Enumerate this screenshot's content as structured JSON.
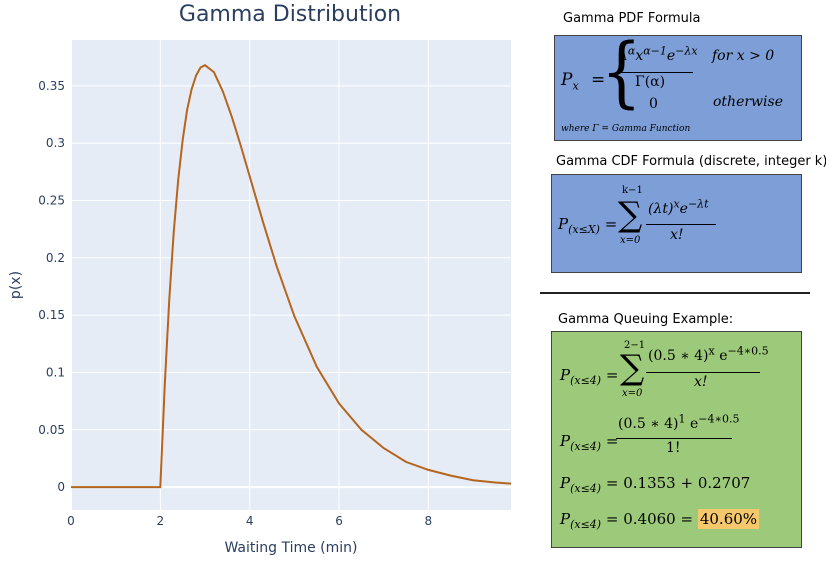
{
  "chart_data": {
    "type": "line",
    "title": "Gamma Distribution",
    "xlabel": "Waiting Time (min)",
    "ylabel": "p(x)",
    "xlim": [
      0,
      9.85
    ],
    "ylim": [
      -0.02,
      0.39
    ],
    "xticks": [
      0,
      2,
      4,
      6,
      8
    ],
    "yticks": [
      0,
      0.05,
      0.1,
      0.15,
      0.2,
      0.25,
      0.3,
      0.35
    ],
    "ytick_labels": [
      "0",
      "0.05",
      "0.1",
      "0.15",
      "0.2",
      "0.25",
      "0.3",
      "0.35"
    ],
    "grid": true,
    "series": [
      {
        "color": "#b5651d",
        "x": [
          0,
          1,
          2,
          2.1,
          2.2,
          2.3,
          2.4,
          2.5,
          2.6,
          2.7,
          2.8,
          2.9,
          3.0,
          3.2,
          3.4,
          3.6,
          3.8,
          4.0,
          4.3,
          4.6,
          5.0,
          5.5,
          6.0,
          6.5,
          7.0,
          7.5,
          8.0,
          8.5,
          9.0,
          9.5,
          9.85
        ],
        "y": [
          0,
          0,
          0,
          0.09,
          0.164,
          0.222,
          0.268,
          0.303,
          0.329,
          0.347,
          0.359,
          0.366,
          0.368,
          0.362,
          0.345,
          0.323,
          0.298,
          0.271,
          0.231,
          0.193,
          0.149,
          0.105,
          0.073,
          0.05,
          0.034,
          0.022,
          0.015,
          0.01,
          0.006,
          0.004,
          0.003
        ]
      }
    ]
  },
  "colors": {
    "plot_bg": "#e5ecf6",
    "grid": "#ffffff",
    "pdf_box": "#7d9ed6",
    "example_box": "#9cca7a",
    "highlight": "#f6c86c"
  },
  "pdf": {
    "title": "Gamma PDF Formula",
    "lhs": "P",
    "lhs_sub": "x",
    "brace": "{",
    "numerator": "λ",
    "numerator_sup1": "α",
    "numerator_x": "x",
    "numerator_sup2": "α−1",
    "numerator_e": "e",
    "numerator_sup3": "−λx",
    "denominator": "Γ(α)",
    "zero": "0",
    "case1": "for x > 0",
    "case2": "otherwise",
    "note": "where Γ = Gamma Function"
  },
  "cdf": {
    "title": "Gamma CDF Formula (discrete, integer k)",
    "lhs": "P",
    "lhs_sub": "(x≤X)",
    "sum_top": "k−1",
    "sum_bottom": "x=0",
    "numerator": "(λt)",
    "numerator_sup": "x",
    "numerator_e": "e",
    "numerator_esup": "−λt",
    "denominator": "x!"
  },
  "example": {
    "title": "Gamma Queuing Example:",
    "lhs": "P",
    "lhs_sub": "(x≤4)",
    "line1_sum_top": "2−1",
    "line1_sum_bottom": "x=0",
    "line1_num": "(0.5 ∗ 4)",
    "line1_num_sup": "x",
    "line1_e": "e",
    "line1_esup": "−4∗0.5",
    "line1_den": "x!",
    "line2_num": "(0.5 ∗ 4)",
    "line2_num_sup": "1",
    "line2_e": "e",
    "line2_esup": "−4∗0.5",
    "line2_den": "1!",
    "line3_rhs": "= 0.1353 + 0.2707",
    "line4_rhs": "= 0.4060 =",
    "result": "40.60%"
  }
}
